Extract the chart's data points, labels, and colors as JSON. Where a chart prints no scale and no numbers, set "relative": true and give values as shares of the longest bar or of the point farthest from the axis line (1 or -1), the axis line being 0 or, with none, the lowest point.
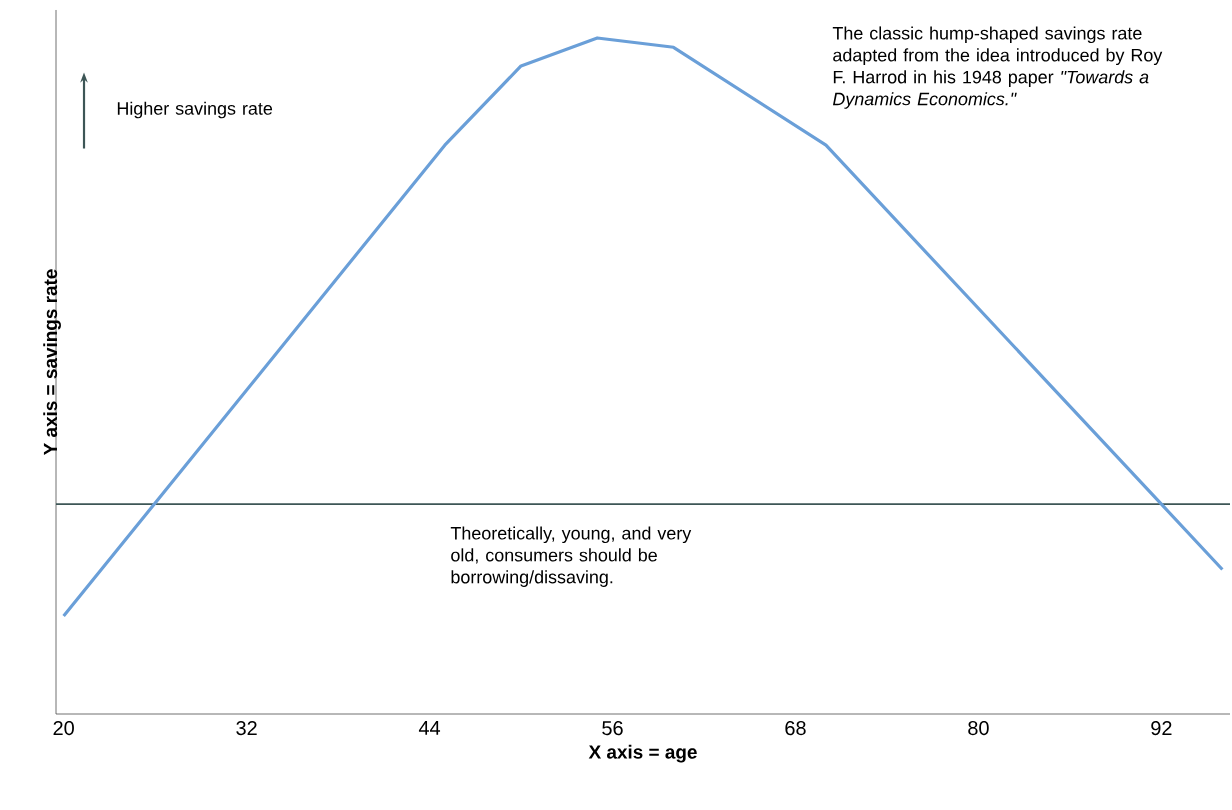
{
  "chart_data": {
    "type": "line",
    "relative": true,
    "xlabel": "X axis = age",
    "ylabel": "Y axis = savings rate",
    "x": [
      20,
      45,
      50,
      55,
      60,
      70,
      92,
      96
    ],
    "values": [
      -0.24,
      0.77,
      0.94,
      1.0,
      0.98,
      0.77,
      0,
      -0.14
    ],
    "color": "#6a9fd8",
    "marker": "none",
    "line_style": "solid",
    "xlim": [
      19.5,
      96.5
    ],
    "xticks": [
      20,
      32,
      44,
      56,
      68,
      80,
      92
    ],
    "annotations": [
      "Higher savings rate",
      "The classic hump-shaped savings rate adapted from the idea introduced by Roy F. Harrod in his 1948 paper *\"Towards a Dynamics Economics.\"*",
      "Theoretically, young, and very old, consumers should be borrowing/dissaving."
    ]
  }
}
